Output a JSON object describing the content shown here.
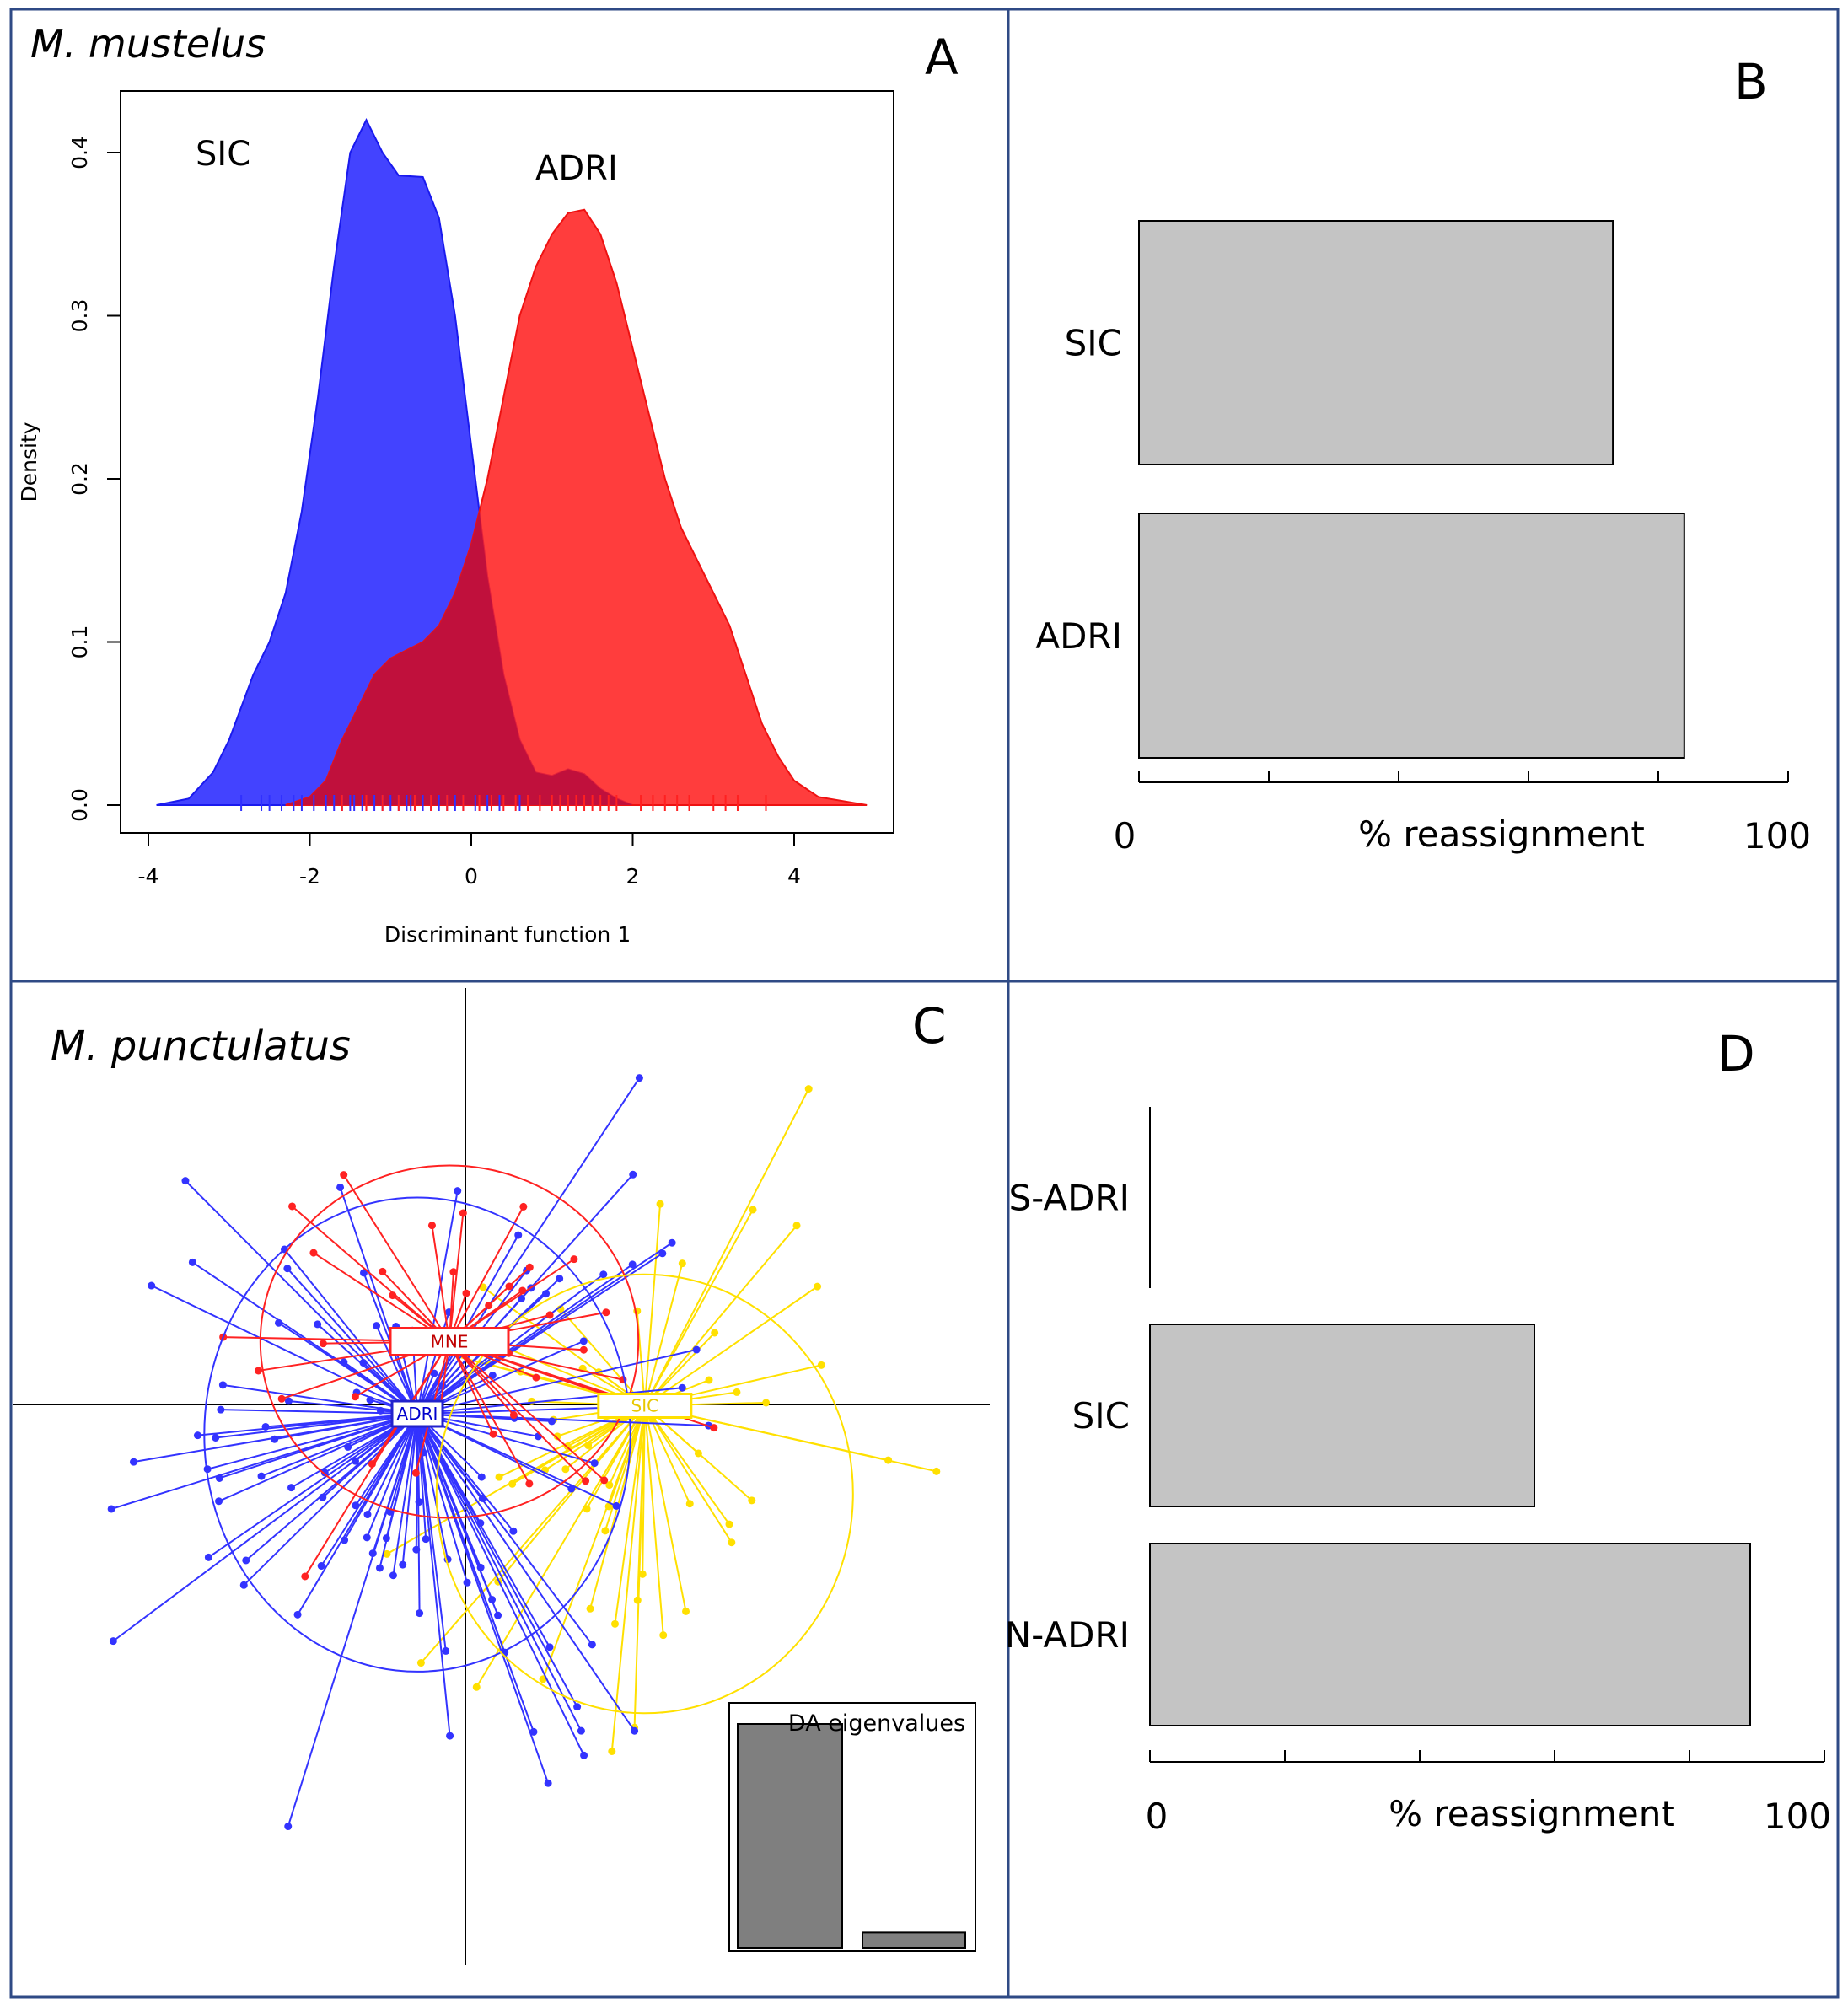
{
  "colors": {
    "sic_blue": "#3333ff",
    "adri_red": "#ff2222",
    "overlap": "#c0103c",
    "sic_yellow": "#ffe000",
    "bar_gray": "#c4c4c4",
    "eig_gray": "#7f7f7f",
    "panel_border": "#2f4a85"
  },
  "chart_data": [
    {
      "panel": "A",
      "type": "area",
      "species": "M. mustelus",
      "panel_letter": "A",
      "xlabel": "Discriminant function 1",
      "ylabel": "Density",
      "xlim": [
        -4,
        5
      ],
      "ylim": [
        0,
        0.45
      ],
      "x_ticks": [
        "-4",
        "-2",
        "0",
        "2",
        "4"
      ],
      "y_ticks": [
        "0.0",
        "0.1",
        "0.2",
        "0.3",
        "0.4"
      ],
      "series": [
        {
          "name": "SIC",
          "label": "SIC",
          "color": "blue",
          "points": [
            [
              -3.9,
              0
            ],
            [
              -3.5,
              0.004
            ],
            [
              -3.2,
              0.02
            ],
            [
              -3.0,
              0.04
            ],
            [
              -2.7,
              0.08
            ],
            [
              -2.5,
              0.1
            ],
            [
              -2.3,
              0.13
            ],
            [
              -2.1,
              0.18
            ],
            [
              -1.9,
              0.25
            ],
            [
              -1.7,
              0.33
            ],
            [
              -1.5,
              0.4
            ],
            [
              -1.3,
              0.42
            ],
            [
              -1.1,
              0.4
            ],
            [
              -0.9,
              0.386
            ],
            [
              -0.6,
              0.385
            ],
            [
              -0.4,
              0.36
            ],
            [
              -0.2,
              0.3
            ],
            [
              0.0,
              0.22
            ],
            [
              0.2,
              0.14
            ],
            [
              0.4,
              0.08
            ],
            [
              0.6,
              0.04
            ],
            [
              0.8,
              0.02
            ],
            [
              1.0,
              0.018
            ],
            [
              1.2,
              0.022
            ],
            [
              1.4,
              0.019
            ],
            [
              1.6,
              0.01
            ],
            [
              1.8,
              0.004
            ],
            [
              2.0,
              0
            ]
          ],
          "rug": [
            -2.85,
            -2.6,
            -2.5,
            -2.35,
            -2.2,
            -2.1,
            -1.95,
            -1.8,
            -1.7,
            -1.6,
            -1.5,
            -1.45,
            -1.35,
            -1.3,
            -1.2,
            -1.1,
            -1.0,
            -0.9,
            -0.8,
            -0.75,
            -0.7,
            -0.6,
            -0.5,
            -0.4,
            -0.3,
            -0.2,
            -0.1,
            0.05,
            0.2,
            0.35,
            0.6,
            1.1
          ]
        },
        {
          "name": "ADRI",
          "label": "ADRI",
          "color": "red",
          "points": [
            [
              -2.3,
              0
            ],
            [
              -2.0,
              0.005
            ],
            [
              -1.8,
              0.015
            ],
            [
              -1.6,
              0.04
            ],
            [
              -1.4,
              0.06
            ],
            [
              -1.2,
              0.08
            ],
            [
              -1.0,
              0.09
            ],
            [
              -0.8,
              0.095
            ],
            [
              -0.6,
              0.1
            ],
            [
              -0.4,
              0.11
            ],
            [
              -0.2,
              0.13
            ],
            [
              0.0,
              0.16
            ],
            [
              0.2,
              0.2
            ],
            [
              0.4,
              0.25
            ],
            [
              0.6,
              0.3
            ],
            [
              0.8,
              0.33
            ],
            [
              1.0,
              0.35
            ],
            [
              1.2,
              0.363
            ],
            [
              1.4,
              0.365
            ],
            [
              1.6,
              0.35
            ],
            [
              1.8,
              0.32
            ],
            [
              2.0,
              0.28
            ],
            [
              2.2,
              0.24
            ],
            [
              2.4,
              0.2
            ],
            [
              2.6,
              0.17
            ],
            [
              2.8,
              0.15
            ],
            [
              3.0,
              0.13
            ],
            [
              3.2,
              0.11
            ],
            [
              3.4,
              0.08
            ],
            [
              3.6,
              0.05
            ],
            [
              3.8,
              0.03
            ],
            [
              4.0,
              0.015
            ],
            [
              4.3,
              0.005
            ],
            [
              4.9,
              0
            ]
          ],
          "rug": [
            -1.6,
            -1.3,
            -1.1,
            -0.9,
            -0.7,
            -0.5,
            -0.3,
            -0.1,
            0.1,
            0.25,
            0.4,
            0.55,
            0.7,
            0.85,
            1.0,
            1.1,
            1.2,
            1.3,
            1.4,
            1.5,
            1.6,
            1.7,
            1.8,
            2.1,
            2.25,
            2.4,
            2.55,
            2.7,
            3.0,
            3.15,
            3.3,
            3.65
          ]
        }
      ]
    },
    {
      "panel": "B",
      "type": "bar",
      "orientation": "horizontal",
      "panel_letter": "B",
      "xlabel": "% reassignment",
      "xlim": [
        0,
        100
      ],
      "x_tick_labels": [
        "0",
        "100"
      ],
      "minor_ticks": [
        0,
        20,
        40,
        60,
        80,
        100
      ],
      "categories": [
        "SIC",
        "ADRI"
      ],
      "values": [
        73,
        84
      ]
    },
    {
      "panel": "C",
      "type": "scatter",
      "species": "M. punctulatus",
      "panel_letter": "C",
      "groups": [
        {
          "name": "ADRI",
          "label": "ADRI",
          "color": "blue",
          "centroid": [
            0,
            0
          ],
          "ellipse": {
            "rx": 1.33,
            "ry": 1.48,
            "cy": -0.13
          }
        },
        {
          "name": "MNE",
          "label": "MNE",
          "color": "red",
          "centroid": [
            0.2,
            0.45
          ],
          "ellipse": {
            "rx": 1.18,
            "ry": 1.1,
            "cy": 0.45
          }
        },
        {
          "name": "SIC",
          "label": "SIC",
          "color": "yellow",
          "centroid": [
            1.42,
            0.05
          ],
          "ellipse": {
            "rx": 1.3,
            "ry": 1.37,
            "cy": -0.5
          }
        }
      ],
      "eigenvalues_title": "DA eigenvalues",
      "eigenvalues": [
        100,
        7
      ]
    },
    {
      "panel": "D",
      "type": "bar",
      "orientation": "horizontal",
      "panel_letter": "D",
      "xlabel": "% reassignment",
      "xlim": [
        0,
        100
      ],
      "x_tick_labels": [
        "0",
        "100"
      ],
      "minor_ticks": [
        0,
        20,
        40,
        60,
        80,
        100
      ],
      "categories": [
        "S-ADRI",
        "SIC",
        "N-ADRI"
      ],
      "values": [
        0,
        57,
        89
      ]
    }
  ]
}
